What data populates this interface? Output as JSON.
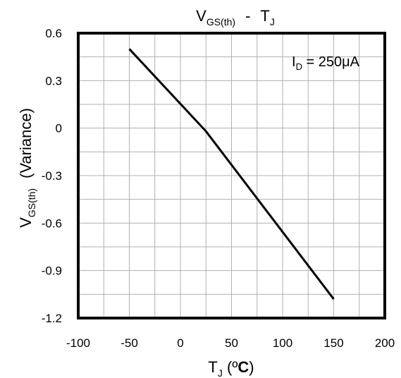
{
  "chart_data": {
    "type": "line",
    "title": {
      "main": "V",
      "main_sub": "GS(th)",
      "sep": "-",
      "second": "T",
      "second_sub": "J"
    },
    "xlabel": {
      "main": "T",
      "sub": "J",
      "unit_open": " (",
      "unit_deg": "º",
      "unit_c": "C",
      "unit_close": ")"
    },
    "ylabel": {
      "main": "V",
      "sub": "GS(th)",
      "rest": "(Variance)"
    },
    "annotation": {
      "main": "I",
      "sub": "D",
      "value": " = 250μA"
    },
    "xlim": [
      -100,
      200
    ],
    "ylim": [
      -1.2,
      0.6
    ],
    "x_ticks": [
      "-100",
      "-50",
      "0",
      "50",
      "100",
      "150",
      "200"
    ],
    "y_ticks": [
      "0.6",
      "0.3",
      "0",
      "-0.3",
      "-0.6",
      "-0.9",
      "-1.2"
    ],
    "grid": true,
    "x_grid_step": 25,
    "y_grid_step": 0.15,
    "series": [
      {
        "x": [
          -50,
          25,
          150
        ],
        "y": [
          0.5,
          -0.02,
          -1.08
        ]
      }
    ],
    "colors": {
      "line": "#000000",
      "grid": "#b0b0b0",
      "frame": "#000000"
    }
  }
}
